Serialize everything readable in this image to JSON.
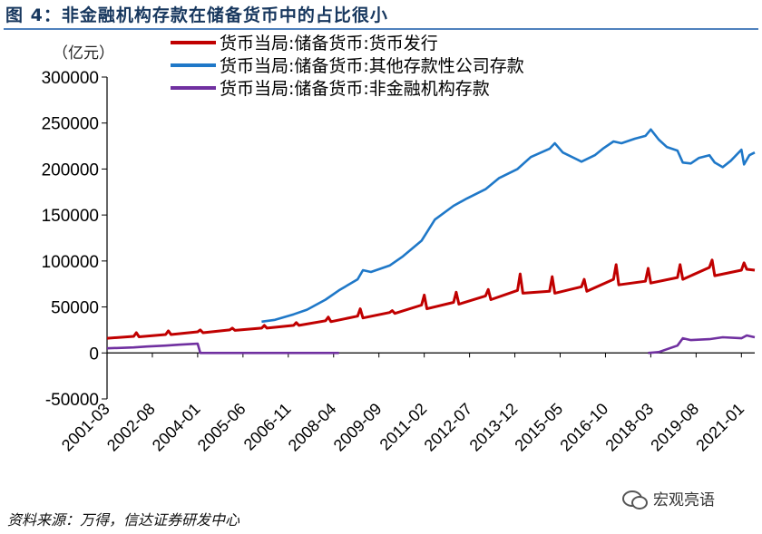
{
  "title": "图 4：非金融机构存款在储备货币中的占比很小",
  "unit_label": "（亿元）",
  "source": "资料来源：万得，信达证券研发中心",
  "watermark": "宏观亮语",
  "watermark_icon": "wechat-icon",
  "colors": {
    "issuance": "#C00000",
    "bank_deposits": "#1F78C8",
    "nonfin_deposits": "#7030A0",
    "title": "#17375E",
    "rule": "#4F81BD"
  },
  "chart_data": {
    "type": "line",
    "title": "",
    "xlabel": "",
    "ylabel": "（亿元）",
    "ylim": [
      -50000,
      300000
    ],
    "yticks": [
      300000,
      250000,
      200000,
      150000,
      100000,
      50000,
      0,
      -50000
    ],
    "ytick_labels": [
      "300000",
      "250000",
      "200000",
      "150000",
      "100000",
      "50000",
      "0",
      "-50000"
    ],
    "xtick_labels": [
      "2001-03",
      "2002-08",
      "2004-01",
      "2005-06",
      "2006-11",
      "2008-04",
      "2009-09",
      "2011-02",
      "2012-07",
      "2013-12",
      "2015-05",
      "2016-10",
      "2018-03",
      "2019-08",
      "2021-01"
    ],
    "xtick_values": [
      "2001-03",
      "2002-08",
      "2004-01",
      "2005-06",
      "2006-11",
      "2008-04",
      "2009-09",
      "2011-02",
      "2012-07",
      "2013-12",
      "2015-05",
      "2016-10",
      "2018-03",
      "2019-08",
      "2021-01"
    ],
    "x_range": [
      "2001-03",
      "2021-06"
    ],
    "grid": false,
    "legend_position": "top",
    "series": [
      {
        "name": "货币当局:储备货币:货币发行",
        "color": "#C00000",
        "points": [
          [
            "2001-03",
            16000
          ],
          [
            "2002-01",
            18000
          ],
          [
            "2002-02",
            22000
          ],
          [
            "2002-03",
            17500
          ],
          [
            "2003-01",
            20000
          ],
          [
            "2003-02",
            24000
          ],
          [
            "2003-03",
            20000
          ],
          [
            "2004-01",
            23000
          ],
          [
            "2004-02",
            25000
          ],
          [
            "2004-03",
            22000
          ],
          [
            "2005-01",
            25000
          ],
          [
            "2005-02",
            27000
          ],
          [
            "2005-03",
            24500
          ],
          [
            "2006-01",
            27000
          ],
          [
            "2006-02",
            30000
          ],
          [
            "2006-03",
            27000
          ],
          [
            "2007-01",
            30000
          ],
          [
            "2007-02",
            33000
          ],
          [
            "2007-03",
            30000
          ],
          [
            "2008-01",
            35000
          ],
          [
            "2008-02",
            39000
          ],
          [
            "2008-03",
            34000
          ],
          [
            "2009-01",
            40000
          ],
          [
            "2009-02",
            48000
          ],
          [
            "2009-03",
            38000
          ],
          [
            "2010-01",
            44000
          ],
          [
            "2010-02",
            46000
          ],
          [
            "2010-03",
            43000
          ],
          [
            "2011-01",
            52000
          ],
          [
            "2011-02",
            63000
          ],
          [
            "2011-03",
            48000
          ],
          [
            "2012-01",
            55000
          ],
          [
            "2012-02",
            66000
          ],
          [
            "2012-03",
            53000
          ],
          [
            "2013-01",
            62000
          ],
          [
            "2013-02",
            69000
          ],
          [
            "2013-03",
            58000
          ],
          [
            "2014-01",
            68000
          ],
          [
            "2014-02",
            86000
          ],
          [
            "2014-03",
            65000
          ],
          [
            "2015-01",
            67000
          ],
          [
            "2015-02",
            83000
          ],
          [
            "2015-03",
            65000
          ],
          [
            "2016-01",
            72000
          ],
          [
            "2016-02",
            80000
          ],
          [
            "2016-03",
            67000
          ],
          [
            "2017-01",
            80000
          ],
          [
            "2017-02",
            96000
          ],
          [
            "2017-03",
            74000
          ],
          [
            "2018-01",
            78000
          ],
          [
            "2018-02",
            92000
          ],
          [
            "2018-03",
            76000
          ],
          [
            "2019-01",
            82000
          ],
          [
            "2019-02",
            96000
          ],
          [
            "2019-03",
            80000
          ],
          [
            "2020-01",
            93000
          ],
          [
            "2020-02",
            101000
          ],
          [
            "2020-03",
            84000
          ],
          [
            "2021-01",
            90000
          ],
          [
            "2021-02",
            98000
          ],
          [
            "2021-03",
            91000
          ],
          [
            "2021-06",
            90000
          ]
        ]
      },
      {
        "name": "货币当局:储备货币:其他存款性公司存款",
        "color": "#1F78C8",
        "points": [
          [
            "2006-01",
            34000
          ],
          [
            "2006-06",
            36000
          ],
          [
            "2007-01",
            42000
          ],
          [
            "2007-06",
            47000
          ],
          [
            "2008-01",
            58000
          ],
          [
            "2008-06",
            68000
          ],
          [
            "2009-01",
            80000
          ],
          [
            "2009-03",
            90000
          ],
          [
            "2009-06",
            88000
          ],
          [
            "2010-01",
            95000
          ],
          [
            "2010-06",
            105000
          ],
          [
            "2011-01",
            122000
          ],
          [
            "2011-06",
            145000
          ],
          [
            "2012-01",
            160000
          ],
          [
            "2012-06",
            168000
          ],
          [
            "2013-01",
            178000
          ],
          [
            "2013-06",
            190000
          ],
          [
            "2014-01",
            200000
          ],
          [
            "2014-06",
            213000
          ],
          [
            "2015-01",
            222000
          ],
          [
            "2015-03",
            228000
          ],
          [
            "2015-06",
            218000
          ],
          [
            "2016-01",
            208000
          ],
          [
            "2016-06",
            215000
          ],
          [
            "2016-09",
            222000
          ],
          [
            "2017-01",
            230000
          ],
          [
            "2017-04",
            228000
          ],
          [
            "2017-09",
            233000
          ],
          [
            "2018-01",
            236000
          ],
          [
            "2018-03",
            243000
          ],
          [
            "2018-06",
            232000
          ],
          [
            "2018-09",
            224000
          ],
          [
            "2019-01",
            220000
          ],
          [
            "2019-03",
            207000
          ],
          [
            "2019-06",
            206000
          ],
          [
            "2019-09",
            212000
          ],
          [
            "2020-01",
            215000
          ],
          [
            "2020-03",
            207000
          ],
          [
            "2020-06",
            202000
          ],
          [
            "2020-09",
            209000
          ],
          [
            "2021-01",
            221000
          ],
          [
            "2021-02",
            205000
          ],
          [
            "2021-04",
            215000
          ],
          [
            "2021-06",
            218000
          ]
        ]
      },
      {
        "name": "货币当局:储备货币:非金融机构存款",
        "color": "#7030A0",
        "points": [
          [
            "2001-03",
            5000
          ],
          [
            "2002-01",
            6000
          ],
          [
            "2002-06",
            7000
          ],
          [
            "2003-01",
            8000
          ],
          [
            "2003-06",
            9000
          ],
          [
            "2004-01",
            10000
          ],
          [
            "2004-02",
            0
          ],
          [
            "2008-06",
            0
          ],
          [
            "2008-07",
            null
          ],
          [
            "2018-01",
            null
          ],
          [
            "2018-02",
            0
          ],
          [
            "2018-06",
            1000
          ],
          [
            "2019-01",
            8000
          ],
          [
            "2019-03",
            16000
          ],
          [
            "2019-06",
            14000
          ],
          [
            "2020-01",
            15000
          ],
          [
            "2020-06",
            17000
          ],
          [
            "2021-01",
            16000
          ],
          [
            "2021-03",
            19000
          ],
          [
            "2021-06",
            17000
          ]
        ]
      }
    ]
  }
}
